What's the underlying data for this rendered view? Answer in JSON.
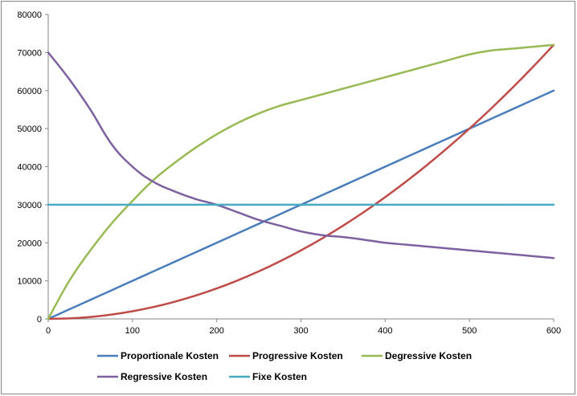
{
  "chart_data": {
    "type": "line",
    "title": "",
    "xlabel": "",
    "ylabel": "",
    "xlim": [
      0,
      600
    ],
    "ylim": [
      0,
      80000
    ],
    "x_ticks": [
      "0",
      "100",
      "200",
      "300",
      "400",
      "500",
      "600"
    ],
    "y_ticks": [
      "0",
      "10000",
      "20000",
      "30000",
      "40000",
      "50000",
      "60000",
      "70000",
      "80000"
    ],
    "grid": false,
    "legend_position": "bottom",
    "x": [
      0,
      25,
      50,
      75,
      100,
      125,
      150,
      175,
      200,
      225,
      250,
      275,
      300,
      325,
      350,
      375,
      400,
      425,
      450,
      475,
      500,
      525,
      550,
      575,
      600
    ],
    "series": [
      {
        "name": "Proportionale Kosten",
        "color": "#4a7ebb",
        "values": [
          0,
          2500,
          5000,
          7500,
          10000,
          12500,
          15000,
          17500,
          20000,
          22500,
          25000,
          27500,
          30000,
          32500,
          35000,
          37500,
          40000,
          42500,
          45000,
          47500,
          50000,
          52500,
          55000,
          57500,
          60000
        ]
      },
      {
        "name": "Progressive Kosten",
        "color": "#be4b48",
        "values": [
          0,
          125,
          500,
          1125,
          2000,
          3125,
          4500,
          6125,
          8000,
          10125,
          12500,
          15125,
          18000,
          21125,
          24500,
          28125,
          32000,
          36125,
          40500,
          45125,
          50000,
          55125,
          60500,
          66125,
          72000
        ]
      },
      {
        "name": "Degressive Kosten",
        "color": "#98b954",
        "values": [
          0,
          10000,
          18000,
          25000,
          31000,
          36500,
          41000,
          45000,
          48500,
          51500,
          54000,
          56000,
          57500,
          59000,
          60500,
          62000,
          63500,
          65000,
          66500,
          68000,
          69500,
          70500,
          71000,
          71500,
          72000
        ]
      },
      {
        "name": "Regressive Kosten",
        "color": "#7d60a0",
        "values": [
          70000,
          63000,
          55000,
          46000,
          40000,
          36000,
          33500,
          31500,
          30000,
          28000,
          26000,
          24500,
          23000,
          22000,
          21500,
          20800,
          20000,
          19500,
          19000,
          18500,
          18000,
          17500,
          17000,
          16500,
          16000
        ]
      },
      {
        "name": "Fixe Kosten",
        "color": "#46aac5",
        "values": [
          30000,
          30000,
          30000,
          30000,
          30000,
          30000,
          30000,
          30000,
          30000,
          30000,
          30000,
          30000,
          30000,
          30000,
          30000,
          30000,
          30000,
          30000,
          30000,
          30000,
          30000,
          30000,
          30000,
          30000,
          30000
        ]
      }
    ]
  }
}
